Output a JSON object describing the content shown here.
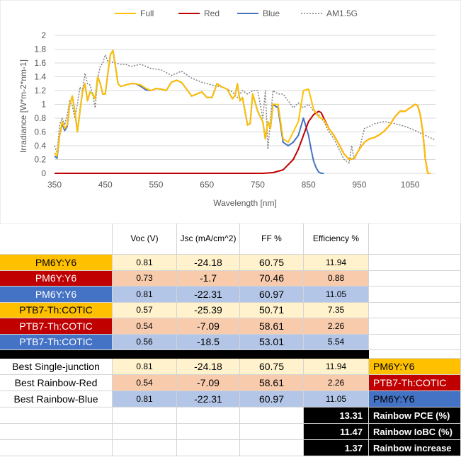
{
  "chart_data": {
    "type": "line",
    "xlabel": "Wavelength [nm]",
    "ylabel": "Irradiance [W*m-2*nm-1]",
    "xlim": [
      350,
      1100
    ],
    "ylim": [
      0,
      2
    ],
    "xticks": [
      350,
      450,
      550,
      650,
      750,
      850,
      950,
      1050
    ],
    "yticks": [
      0,
      0.2,
      0.4,
      0.6,
      0.8,
      1,
      1.2,
      1.4,
      1.6,
      1.8,
      2
    ],
    "legend_position": "top",
    "grid": true,
    "series": [
      {
        "name": "Full",
        "color": "#FFC000",
        "dash": "",
        "x": [
          350,
          355,
          360,
          365,
          370,
          375,
          380,
          385,
          390,
          395,
          400,
          405,
          410,
          415,
          420,
          425,
          430,
          435,
          440,
          445,
          450,
          455,
          460,
          465,
          470,
          475,
          480,
          490,
          500,
          510,
          520,
          530,
          540,
          550,
          560,
          570,
          580,
          590,
          600,
          620,
          640,
          650,
          660,
          670,
          680,
          690,
          700,
          705,
          710,
          715,
          720,
          725,
          730,
          735,
          740,
          750,
          760,
          765,
          770,
          775,
          780,
          790,
          800,
          810,
          820,
          830,
          840,
          850,
          860,
          870,
          875,
          880,
          890,
          900,
          910,
          920,
          930,
          940,
          950,
          960,
          970,
          980,
          990,
          1000,
          1010,
          1020,
          1030,
          1040,
          1050,
          1060,
          1065,
          1070,
          1075,
          1080,
          1085,
          1090
        ],
        "y": [
          0.3,
          0.25,
          0.55,
          0.75,
          0.65,
          0.7,
          1.0,
          1.12,
          0.9,
          0.6,
          0.9,
          1.18,
          1.3,
          1.05,
          1.18,
          1.15,
          1.08,
          1.4,
          1.3,
          1.15,
          1.15,
          1.45,
          1.72,
          1.78,
          1.55,
          1.3,
          1.26,
          1.28,
          1.3,
          1.3,
          1.28,
          1.23,
          1.2,
          1.23,
          1.22,
          1.2,
          1.32,
          1.35,
          1.32,
          1.12,
          1.18,
          1.1,
          1.1,
          1.3,
          1.25,
          1.22,
          1.08,
          1.12,
          1.3,
          1.05,
          1.1,
          0.9,
          0.7,
          0.72,
          1.15,
          0.9,
          0.75,
          0.5,
          0.75,
          0.65,
          1.0,
          1.0,
          0.5,
          0.45,
          0.6,
          0.75,
          1.2,
          1.22,
          0.93,
          0.82,
          0.8,
          0.78,
          0.65,
          0.55,
          0.42,
          0.28,
          0.2,
          0.22,
          0.35,
          0.45,
          0.5,
          0.52,
          0.56,
          0.62,
          0.7,
          0.82,
          0.9,
          0.9,
          0.95,
          1.0,
          0.98,
          0.85,
          0.6,
          0.2,
          0.0,
          0.0
        ]
      },
      {
        "name": "Red",
        "color": "#C00000",
        "dash": "",
        "x": [
          350,
          760,
          780,
          800,
          820,
          830,
          840,
          850,
          860,
          870,
          875,
          880,
          890,
          900,
          910,
          920,
          930,
          940,
          950,
          960,
          970,
          980,
          990,
          1000,
          1010,
          1020,
          1030,
          1040,
          1050,
          1060,
          1065,
          1070,
          1075,
          1080,
          1085,
          1090
        ],
        "y": [
          0,
          0,
          0.01,
          0.05,
          0.2,
          0.35,
          0.55,
          0.75,
          0.85,
          0.9,
          0.88,
          0.8,
          0.65,
          0.55,
          0.42,
          0.28,
          0.2,
          0.22,
          0.35,
          0.45,
          0.5,
          0.52,
          0.56,
          0.62,
          0.7,
          0.82,
          0.9,
          0.9,
          0.95,
          1.0,
          0.98,
          0.85,
          0.6,
          0.2,
          0.0,
          0.0
        ]
      },
      {
        "name": "Blue",
        "color": "#4472C4",
        "dash": "",
        "x": [
          350,
          355,
          360,
          365,
          370,
          375,
          380,
          385,
          390,
          395,
          400,
          405,
          410,
          415,
          420,
          425,
          430,
          435,
          440,
          445,
          450,
          455,
          460,
          465,
          470,
          475,
          480,
          490,
          500,
          510,
          520,
          530,
          540,
          550,
          560,
          570,
          580,
          590,
          600,
          620,
          640,
          650,
          660,
          670,
          680,
          690,
          700,
          705,
          710,
          715,
          720,
          725,
          730,
          735,
          740,
          750,
          760,
          765,
          770,
          775,
          780,
          790,
          800,
          810,
          820,
          830,
          840,
          850,
          855,
          860,
          865,
          870,
          875,
          880
        ],
        "y": [
          0.25,
          0.22,
          0.55,
          0.72,
          0.62,
          0.68,
          1.0,
          1.12,
          0.9,
          0.6,
          0.9,
          1.18,
          1.3,
          1.05,
          1.18,
          1.15,
          1.08,
          1.4,
          1.3,
          1.15,
          1.15,
          1.45,
          1.72,
          1.78,
          1.55,
          1.3,
          1.26,
          1.28,
          1.3,
          1.3,
          1.26,
          1.21,
          1.2,
          1.23,
          1.22,
          1.2,
          1.32,
          1.35,
          1.32,
          1.12,
          1.18,
          1.1,
          1.1,
          1.3,
          1.25,
          1.22,
          1.08,
          1.12,
          1.3,
          1.05,
          1.1,
          0.9,
          0.7,
          0.72,
          1.15,
          0.9,
          0.75,
          0.5,
          0.75,
          0.65,
          1.0,
          0.95,
          0.45,
          0.4,
          0.45,
          0.55,
          0.8,
          0.55,
          0.35,
          0.18,
          0.08,
          0.02,
          0.0,
          0.0
        ]
      },
      {
        "name": "AM1.5G",
        "color": "#7F7F7F",
        "dash": "2,2",
        "x": [
          350,
          355,
          360,
          365,
          370,
          375,
          380,
          385,
          390,
          395,
          400,
          405,
          410,
          415,
          420,
          425,
          430,
          435,
          440,
          445,
          450,
          455,
          460,
          470,
          480,
          490,
          500,
          520,
          540,
          560,
          580,
          600,
          620,
          640,
          660,
          680,
          690,
          700,
          710,
          720,
          730,
          740,
          750,
          760,
          765,
          770,
          780,
          790,
          800,
          810,
          820,
          830,
          840,
          850,
          860,
          870,
          880,
          890,
          900,
          910,
          920,
          930,
          935,
          940,
          950,
          960,
          970,
          980,
          1000,
          1020,
          1040,
          1060,
          1080,
          1100
        ],
        "y": [
          0.4,
          0.3,
          0.7,
          0.8,
          0.7,
          0.85,
          1.05,
          0.98,
          0.8,
          1.0,
          1.25,
          1.2,
          1.45,
          1.3,
          1.28,
          1.15,
          0.95,
          1.38,
          1.55,
          1.6,
          1.72,
          1.62,
          1.62,
          1.6,
          1.58,
          1.58,
          1.55,
          1.58,
          1.52,
          1.5,
          1.42,
          1.48,
          1.38,
          1.32,
          1.28,
          1.25,
          1.22,
          1.18,
          1.1,
          1.2,
          1.15,
          1.2,
          1.2,
          0.8,
          1.2,
          0.35,
          1.2,
          1.15,
          1.15,
          1.05,
          0.95,
          1.02,
          0.95,
          1.0,
          0.9,
          0.85,
          0.75,
          0.6,
          0.5,
          0.35,
          0.2,
          0.15,
          0.4,
          0.2,
          0.35,
          0.65,
          0.68,
          0.72,
          0.75,
          0.72,
          0.68,
          0.62,
          0.55,
          0.48
        ]
      }
    ]
  },
  "table": {
    "headers": {
      "voc": "Voc (V)",
      "jsc": "Jsc (mA/cm^2)",
      "ff": "FF %",
      "eff": "Efficiency %"
    },
    "rows": [
      {
        "label": "PM6Y:Y6",
        "voc": "0.81",
        "jsc": "-24.18",
        "ff": "60.75",
        "eff": "11.94"
      },
      {
        "label": "PM6Y:Y6",
        "voc": "0.73",
        "jsc": "-1.7",
        "ff": "70.46",
        "eff": "0.88"
      },
      {
        "label": "PM6Y:Y6",
        "voc": "0.81",
        "jsc": "-22.31",
        "ff": "60.97",
        "eff": "11.05"
      },
      {
        "label": "PTB7-Th:COTIC",
        "voc": "0.57",
        "jsc": "-25.39",
        "ff": "50.71",
        "eff": "7.35"
      },
      {
        "label": "PTB7-Th:COTIC",
        "voc": "0.54",
        "jsc": "-7.09",
        "ff": "58.61",
        "eff": "2.26"
      },
      {
        "label": "PTB7-Th:COTIC",
        "voc": "0.56",
        "jsc": "-18.5",
        "ff": "53.01",
        "eff": "5.54"
      }
    ],
    "best_rows": [
      {
        "label": "Best Single-junction",
        "voc": "0.81",
        "jsc": "-24.18",
        "ff": "60.75",
        "eff": "11.94",
        "material": "PM6Y:Y6"
      },
      {
        "label": "Best Rainbow-Red",
        "voc": "0.54",
        "jsc": "-7.09",
        "ff": "58.61",
        "eff": "2.26",
        "material": "PTB7-Th:COTIC"
      },
      {
        "label": "Best Rainbow-Blue",
        "voc": "0.81",
        "jsc": "-22.31",
        "ff": "60.97",
        "eff": "11.05",
        "material": "PM6Y:Y6"
      }
    ],
    "summary": [
      {
        "value": "13.31",
        "label": "Rainbow PCE (%)"
      },
      {
        "value": "11.47",
        "label": "Rainbow IoBC (%)"
      },
      {
        "value": "1.37",
        "label": "Rainbow increase"
      }
    ],
    "colors": {
      "yellow": "#FFC000",
      "red": "#C00000",
      "blue": "#4472C4",
      "light_yellow": "#FFF2CC",
      "light_red": "#F8CBAD",
      "light_blue": "#B4C6E7"
    }
  }
}
